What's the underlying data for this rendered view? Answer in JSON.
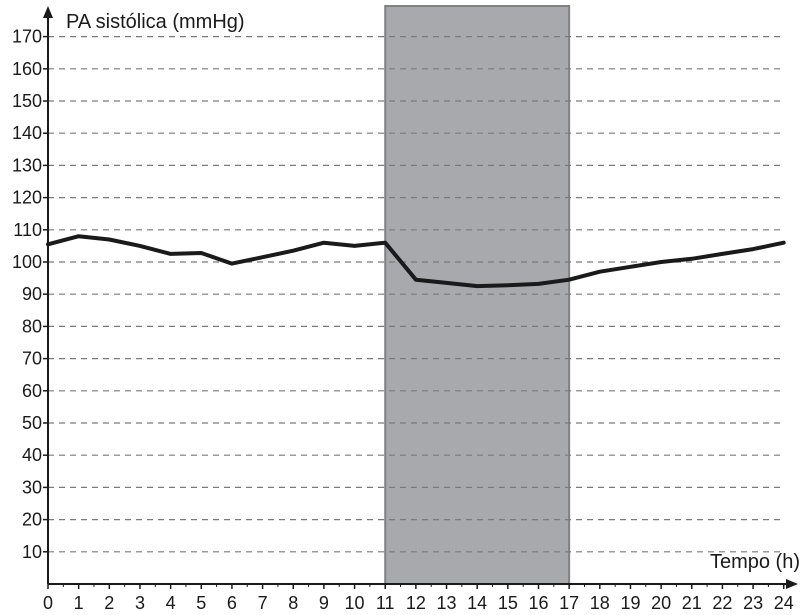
{
  "chart_data": {
    "type": "line",
    "ylabel": "PA sistólica (mmHg)",
    "xlabel": "Tempo (h)",
    "xlim": [
      0,
      24.4
    ],
    "ylim": [
      0,
      178
    ],
    "x_ticks": [
      0,
      1,
      2,
      3,
      4,
      5,
      6,
      7,
      8,
      9,
      10,
      11,
      12,
      13,
      14,
      15,
      16,
      17,
      18,
      19,
      20,
      21,
      22,
      23,
      24
    ],
    "y_ticks": [
      10,
      20,
      30,
      40,
      50,
      60,
      70,
      80,
      90,
      100,
      110,
      120,
      130,
      140,
      150,
      160,
      170
    ],
    "grid": "horizontal-dashed",
    "shaded_region": {
      "x_start": 11,
      "x_end": 17,
      "color": "#a7a9ac"
    },
    "series": [
      {
        "color": "#1a1a1a",
        "points": [
          [
            0,
            105.5
          ],
          [
            1,
            108
          ],
          [
            2,
            107
          ],
          [
            3,
            105
          ],
          [
            4,
            102.5
          ],
          [
            5,
            102.8
          ],
          [
            6,
            99.5
          ],
          [
            7,
            101.5
          ],
          [
            8,
            103.5
          ],
          [
            9,
            106
          ],
          [
            10,
            105
          ],
          [
            11,
            106
          ],
          [
            12,
            94.5
          ],
          [
            13,
            93.5
          ],
          [
            14,
            92.5
          ],
          [
            15,
            92.8
          ],
          [
            16,
            93.2
          ],
          [
            17,
            94.5
          ],
          [
            18,
            97
          ],
          [
            19,
            98.5
          ],
          [
            20,
            100
          ],
          [
            21,
            101
          ],
          [
            22,
            102.5
          ],
          [
            23,
            104
          ],
          [
            24,
            106
          ]
        ]
      }
    ]
  }
}
